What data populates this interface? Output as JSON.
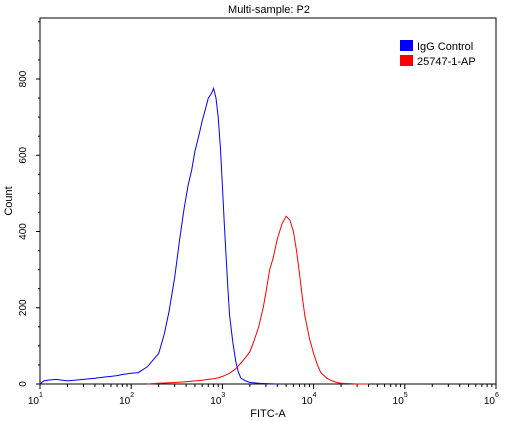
{
  "chart_data": {
    "type": "line",
    "title": "Multi-sample: P2",
    "xlabel": "FITC-A",
    "ylabel": "Count",
    "xscale": "log",
    "xlim": [
      10,
      1000000
    ],
    "ylim": [
      0,
      960
    ],
    "x_ticks": [
      {
        "base": "10",
        "exp": "1"
      },
      {
        "base": "10",
        "exp": "2"
      },
      {
        "base": "10",
        "exp": "3"
      },
      {
        "base": "10",
        "exp": "4"
      },
      {
        "base": "10",
        "exp": "5"
      },
      {
        "base": "10",
        "exp": "6"
      }
    ],
    "y_ticks": [
      "0",
      "200",
      "400",
      "600",
      "800"
    ],
    "legend_position": "top-right",
    "series": [
      {
        "name": "IgG Control",
        "color": "#0000ff",
        "x": [
          10,
          11,
          12,
          15,
          20,
          30,
          40,
          50,
          60,
          70,
          80,
          100,
          120,
          150,
          170,
          200,
          230,
          260,
          300,
          340,
          380,
          420,
          460,
          500,
          550,
          600,
          650,
          700,
          750,
          800,
          850,
          900,
          950,
          1000,
          1050,
          1100,
          1150,
          1200,
          1300,
          1400,
          1500,
          1600,
          1800,
          2000,
          2500,
          3000,
          4000
        ],
        "y": [
          0,
          8,
          10,
          12,
          8,
          12,
          15,
          18,
          20,
          22,
          25,
          28,
          30,
          45,
          60,
          80,
          130,
          190,
          280,
          380,
          460,
          520,
          560,
          610,
          650,
          690,
          720,
          750,
          760,
          775,
          750,
          700,
          620,
          520,
          420,
          330,
          250,
          180,
          110,
          60,
          30,
          15,
          8,
          4,
          2,
          1,
          0
        ]
      },
      {
        "name": "25747-1-AP",
        "color": "#ff0000",
        "x": [
          150,
          200,
          300,
          400,
          500,
          600,
          700,
          800,
          900,
          1000,
          1200,
          1400,
          1600,
          1800,
          2000,
          2200,
          2500,
          2800,
          3000,
          3300,
          3600,
          4000,
          4500,
          5000,
          5500,
          6000,
          6500,
          7000,
          7500,
          8000,
          9000,
          10000,
          11000,
          12000,
          14000,
          16000,
          18000,
          20000,
          25000,
          30000,
          40000
        ],
        "y": [
          0,
          2,
          4,
          6,
          8,
          10,
          12,
          14,
          16,
          20,
          28,
          40,
          55,
          70,
          85,
          110,
          150,
          200,
          240,
          300,
          330,
          380,
          420,
          440,
          430,
          400,
          350,
          290,
          230,
          180,
          120,
          80,
          50,
          30,
          15,
          8,
          4,
          2,
          1,
          0,
          0
        ]
      }
    ]
  }
}
